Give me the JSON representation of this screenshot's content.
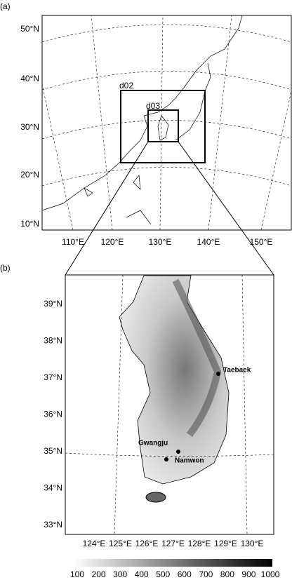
{
  "panel_a": {
    "label": "(a)",
    "lat_labels": [
      "50°N",
      "40°N",
      "30°N",
      "20°N",
      "10°N"
    ],
    "lon_labels": [
      "110°E",
      "120°E",
      "130°E",
      "140°E",
      "150°E"
    ],
    "domains": [
      "d02",
      "d03"
    ]
  },
  "panel_b": {
    "label": "(b)",
    "lat_labels": [
      "39°N",
      "38°N",
      "37°N",
      "36°N",
      "35°N",
      "34°N",
      "33°N"
    ],
    "lon_labels": [
      "124°E",
      "125°E",
      "126°E",
      "127°E",
      "128°E",
      "129°E",
      "130°E"
    ],
    "cities": [
      "Taebaek",
      "Gwangju",
      "Namwon"
    ]
  },
  "colorbar": {
    "ticks": [
      100,
      200,
      300,
      400,
      500,
      600,
      700,
      800,
      900,
      1000
    ]
  }
}
